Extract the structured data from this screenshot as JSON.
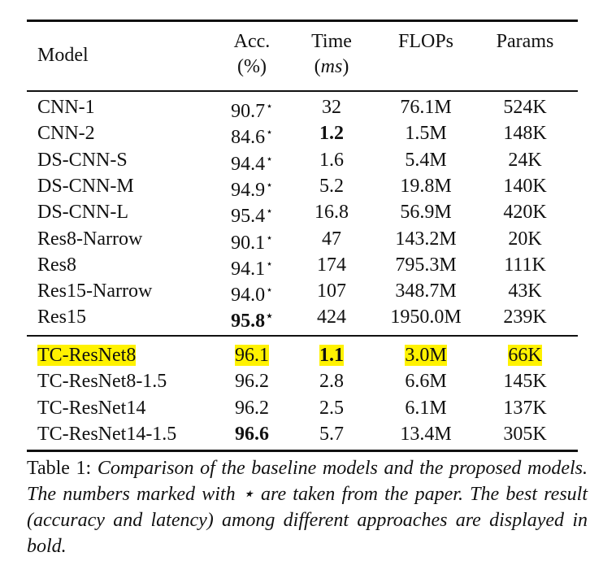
{
  "header": {
    "model": "Model",
    "acc_line1": "Acc.",
    "acc_line2": "(%)",
    "time_line1": "Time",
    "time_line2": "(ms)",
    "flops": "FLOPs",
    "params": "Params"
  },
  "baseline_rows": [
    {
      "model": "CNN-1",
      "acc": "90.7",
      "star": "⋆",
      "time": "32",
      "flops": "76.1M",
      "params": "524K"
    },
    {
      "model": "CNN-2",
      "acc": "84.6",
      "star": "⋆",
      "time": "1.2",
      "flops": "1.5M",
      "params": "148K"
    },
    {
      "model": "DS-CNN-S",
      "acc": "94.4",
      "star": "⋆",
      "time": "1.6",
      "flops": "5.4M",
      "params": "24K"
    },
    {
      "model": "DS-CNN-M",
      "acc": "94.9",
      "star": "⋆",
      "time": "5.2",
      "flops": "19.8M",
      "params": "140K"
    },
    {
      "model": "DS-CNN-L",
      "acc": "95.4",
      "star": "⋆",
      "time": "16.8",
      "flops": "56.9M",
      "params": "420K"
    },
    {
      "model": "Res8-Narrow",
      "acc": "90.1",
      "star": "⋆",
      "time": "47",
      "flops": "143.2M",
      "params": "20K"
    },
    {
      "model": "Res8",
      "acc": "94.1",
      "star": "⋆",
      "time": "174",
      "flops": "795.3M",
      "params": "111K"
    },
    {
      "model": "Res15-Narrow",
      "acc": "94.0",
      "star": "⋆",
      "time": "107",
      "flops": "348.7M",
      "params": "43K"
    },
    {
      "model": "Res15",
      "acc": "95.8",
      "star": "⋆",
      "time": "424",
      "flops": "1950.0M",
      "params": "239K"
    }
  ],
  "proposed_rows": [
    {
      "model": "TC-ResNet8",
      "acc": "96.1",
      "time": "1.1",
      "flops": "3.0M",
      "params": "66K"
    },
    {
      "model": "TC-ResNet8-1.5",
      "acc": "96.2",
      "time": "2.8",
      "flops": "6.6M",
      "params": "145K"
    },
    {
      "model": "TC-ResNet14",
      "acc": "96.2",
      "time": "2.5",
      "flops": "6.1M",
      "params": "137K"
    },
    {
      "model": "TC-ResNet14-1.5",
      "acc": "96.6",
      "time": "5.7",
      "flops": "13.4M",
      "params": "305K"
    }
  ],
  "caption": {
    "label": "Table 1:",
    "text": "Comparison of the baseline models and the proposed models.  The numbers marked with ⋆ are taken from the paper. The best result (accuracy and latency) among different approaches are displayed in bold."
  },
  "highlight_color": "#fff200"
}
